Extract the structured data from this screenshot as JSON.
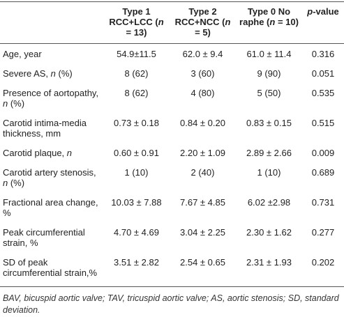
{
  "table": {
    "columns": [
      "",
      [
        {
          "text": "Type 1 RCC+LCC ("
        },
        {
          "text": "n",
          "italic": true
        },
        {
          "text": " = 13)"
        }
      ],
      [
        {
          "text": "Type 2 RCC+NCC ("
        },
        {
          "text": "n",
          "italic": true
        },
        {
          "text": " = 5)"
        }
      ],
      [
        {
          "text": "Type 0 No raphe ("
        },
        {
          "text": "n",
          "italic": true
        },
        {
          "text": " = 10)"
        }
      ],
      [
        {
          "text": "p",
          "italic": true
        },
        {
          "text": "-value"
        }
      ]
    ],
    "rows": [
      [
        "Age, year",
        "54.9±11.5",
        "62.0 ± 9.4",
        "61.0 ± 11.4",
        "0.316"
      ],
      [
        [
          {
            "text": "Severe AS, "
          },
          {
            "text": "n",
            "italic": true
          },
          {
            "text": " (%)"
          }
        ],
        "8 (62)",
        "3 (60)",
        "9 (90)",
        "0.051"
      ],
      [
        [
          {
            "text": "Presence of aortopathy, "
          },
          {
            "text": "n",
            "italic": true
          },
          {
            "text": " (%)"
          }
        ],
        "8 (62)",
        "4 (80)",
        "5 (50)",
        "0.535"
      ],
      [
        "Carotid intima-media thickness, mm",
        "0.73 ± 0.18",
        "0.84 ± 0.20",
        "0.83 ± 0.15",
        "0.515"
      ],
      [
        [
          {
            "text": "Carotid plaque, "
          },
          {
            "text": "n",
            "italic": true
          }
        ],
        "0.60 ± 0.91",
        "2.20 ± 1.09",
        "2.89 ± 2.66",
        "0.009"
      ],
      [
        [
          {
            "text": "Carotid artery stenosis, "
          },
          {
            "text": "n",
            "italic": true
          },
          {
            "text": " (%)"
          }
        ],
        "1 (10)",
        "2 (40)",
        "1 (10)",
        "0.689"
      ],
      [
        "Fractional area change, %",
        "10.03 ± 7.88",
        "7.67 ± 4.85",
        "6.02 ±2.98",
        "0.731"
      ],
      [
        "Peak circumferential strain, %",
        "4.70 ± 4.69",
        "3.04 ± 2.25",
        "2.30 ± 1.62",
        "0.277"
      ],
      [
        "SD of peak circumferential strain,%",
        "3.51 ± 2.82",
        "2.54 ± 0.65",
        "2.31 ± 1.93",
        "0.202"
      ]
    ],
    "footnote": "BAV, bicuspid aortic valve; TAV, tricuspid aortic valve; AS, aortic stenosis; SD, standard deviation."
  }
}
